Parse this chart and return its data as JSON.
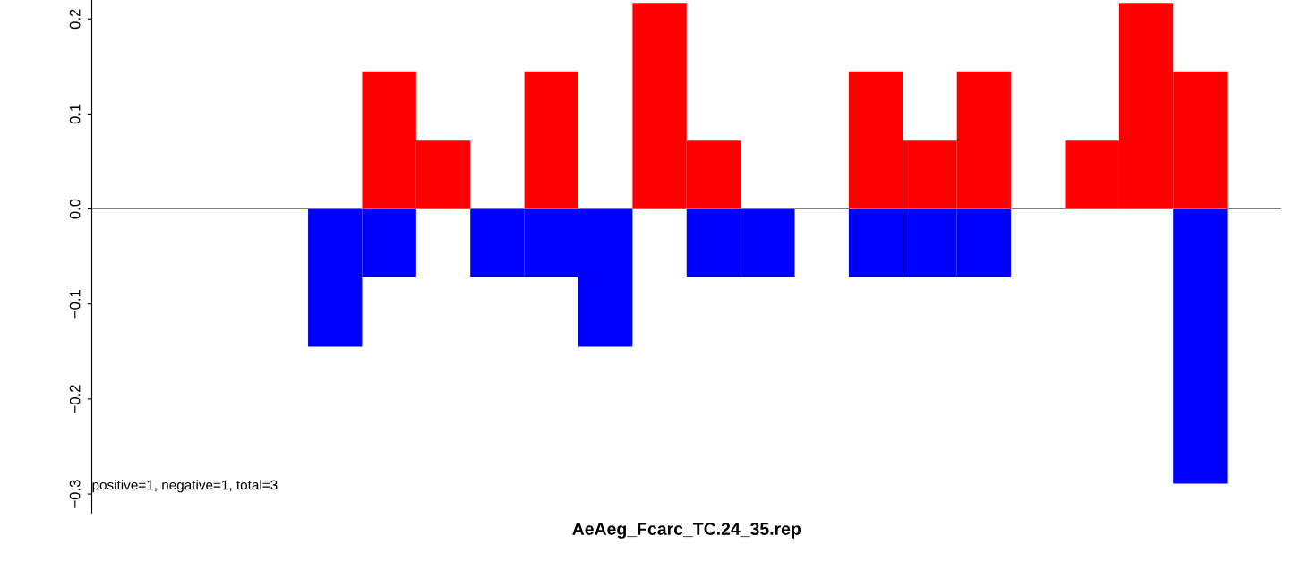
{
  "chart_data": {
    "type": "bar",
    "xlabel": "AeAeg_Fcarc_TC.24_35.rep",
    "categories": [
      null,
      null,
      null,
      null,
      null,
      null,
      null,
      null,
      null,
      null,
      null,
      null,
      null,
      null,
      null,
      null,
      null,
      null,
      null,
      null,
      null,
      null
    ],
    "series": [
      {
        "color": "#ff0000",
        "values": [
          0,
          0,
          0,
          0,
          0,
          0.145,
          0.072,
          0,
          0.145,
          0,
          0.217,
          0.072,
          0,
          0,
          0.145,
          0.072,
          0.145,
          0,
          0.072,
          0.217,
          0.145,
          0
        ]
      },
      {
        "color": "#0000ff",
        "values": [
          0,
          0,
          0,
          0,
          -0.145,
          -0.072,
          0,
          -0.072,
          -0.072,
          -0.145,
          0,
          -0.072,
          -0.072,
          0,
          -0.072,
          -0.072,
          -0.072,
          0,
          0,
          0,
          -0.289,
          0
        ]
      }
    ],
    "ylim": [
      -0.32,
      0.22
    ],
    "yticks": [
      {
        "value": -0.3,
        "label": "−0.3"
      },
      {
        "value": -0.2,
        "label": "−0.2"
      },
      {
        "value": -0.1,
        "label": "−0.1"
      },
      {
        "value": 0,
        "label": "0.0"
      },
      {
        "value": 0.1,
        "label": "0.1"
      },
      {
        "value": 0.2,
        "label": "0.2"
      }
    ],
    "ref_lines": [
      {
        "axis": "y",
        "value": 0,
        "color": "#808080"
      }
    ],
    "annotations": [
      {
        "text": "positive=1, negative=1, total=3"
      }
    ],
    "grid": false,
    "legend": false
  }
}
